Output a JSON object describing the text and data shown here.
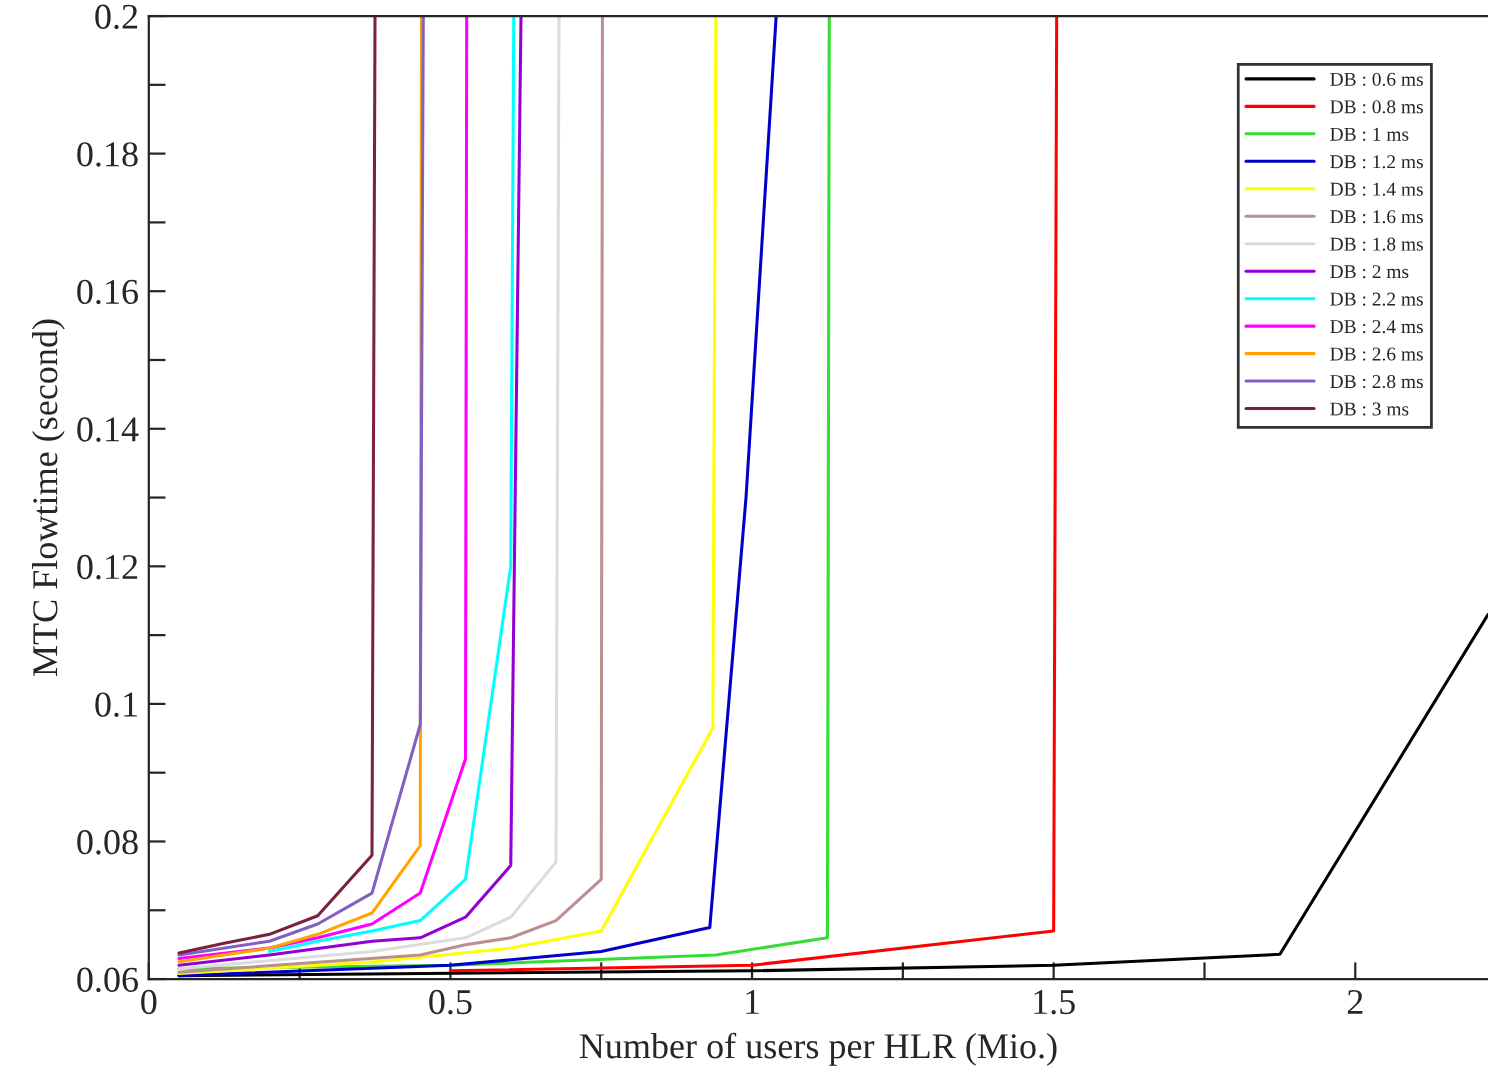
{
  "chart_data": {
    "type": "line",
    "xlabel": "Number of users per HLR (Mio.)",
    "ylabel": "MTC Flowtime (second)",
    "xlim": [
      0,
      2.22
    ],
    "ylim": [
      0.06,
      0.2
    ],
    "xticks": [
      0,
      {
        "value": 0.25,
        "label": null
      },
      0.5,
      {
        "value": 0.75,
        "label": null
      },
      1,
      {
        "value": 1.25,
        "label": null
      },
      1.5,
      {
        "value": 1.75,
        "label": null
      },
      2
    ],
    "yticks": [
      0.06,
      {
        "value": 0.07,
        "label": null
      },
      0.08,
      {
        "value": 0.09,
        "label": null
      },
      0.1,
      {
        "value": 0.11,
        "label": null
      },
      0.12,
      {
        "value": 0.13,
        "label": null
      },
      0.14,
      {
        "value": 0.15,
        "label": null
      },
      0.16,
      {
        "value": 0.17,
        "label": null
      },
      0.18,
      {
        "value": 0.19,
        "label": null
      },
      0.2
    ],
    "grid": false,
    "legend": "top right",
    "marker": "none",
    "line_style": "solid",
    "series": [
      {
        "name": "DB : 0.6 ms",
        "color": "#000000",
        "x": [
          0.05,
          1.0,
          1.5,
          1.875,
          2.22
        ],
        "values": [
          0.0605,
          0.0612,
          0.062,
          0.0636,
          0.113
        ]
      },
      {
        "name": "DB : 0.8 ms",
        "color": "#ff0000",
        "x": [
          0.5,
          1.0,
          1.5,
          1.505
        ],
        "values": [
          0.0612,
          0.062,
          0.067,
          0.2
        ]
      },
      {
        "name": "DB : 1 ms",
        "color": "#33dd33",
        "x": [
          0.05,
          0.5,
          0.94,
          1.125,
          1.128
        ],
        "values": [
          0.0615,
          0.062,
          0.0635,
          0.066,
          0.2
        ]
      },
      {
        "name": "DB : 1.2 ms",
        "color": "#0000cc",
        "x": [
          0.05,
          0.5,
          0.75,
          0.93,
          0.99,
          1.04
        ],
        "values": [
          0.0605,
          0.062,
          0.064,
          0.0675,
          0.13,
          0.2
        ]
      },
      {
        "name": "DB : 1.4 ms",
        "color": "#ffff00",
        "x": [
          0.05,
          0.375,
          0.6,
          0.75,
          0.935,
          0.94
        ],
        "values": [
          0.0608,
          0.0625,
          0.0645,
          0.067,
          0.0965,
          0.2
        ]
      },
      {
        "name": "DB : 1.6 ms",
        "color": "#bc8f8f",
        "x": [
          0.05,
          0.45,
          0.525,
          0.6,
          0.675,
          0.75,
          0.752
        ],
        "values": [
          0.061,
          0.0635,
          0.065,
          0.066,
          0.0685,
          0.0745,
          0.2
        ]
      },
      {
        "name": "DB : 1.8 ms",
        "color": "#dcdcdc",
        "x": [
          0.05,
          0.37,
          0.525,
          0.6,
          0.675,
          0.68
        ],
        "values": [
          0.0615,
          0.064,
          0.066,
          0.069,
          0.077,
          0.2
        ]
      },
      {
        "name": "DB : 2 ms",
        "color": "#9400d3",
        "x": [
          0.05,
          0.2,
          0.37,
          0.45,
          0.525,
          0.6,
          0.617
        ],
        "values": [
          0.062,
          0.0635,
          0.0655,
          0.066,
          0.069,
          0.0765,
          0.2
        ]
      },
      {
        "name": "DB : 2.2 ms",
        "color": "#00ffff",
        "x": [
          0.2,
          0.28,
          0.37,
          0.45,
          0.525,
          0.6,
          0.605
        ],
        "values": [
          0.064,
          0.0655,
          0.067,
          0.0685,
          0.0745,
          0.12,
          0.2
        ]
      },
      {
        "name": "DB : 2.4 ms",
        "color": "#ff00ff",
        "x": [
          0.05,
          0.2,
          0.28,
          0.37,
          0.45,
          0.525,
          0.527
        ],
        "values": [
          0.063,
          0.0645,
          0.066,
          0.068,
          0.0725,
          0.092,
          0.2
        ]
      },
      {
        "name": "DB : 2.6 ms",
        "color": "#ffa500",
        "x": [
          0.05,
          0.2,
          0.28,
          0.37,
          0.45,
          0.452
        ],
        "values": [
          0.0625,
          0.0645,
          0.0665,
          0.0696,
          0.0794,
          0.2
        ]
      },
      {
        "name": "DB : 2.8 ms",
        "color": "#8060c0",
        "x": [
          0.05,
          0.2,
          0.28,
          0.37,
          0.45,
          0.455
        ],
        "values": [
          0.0635,
          0.0655,
          0.068,
          0.0725,
          0.097,
          0.2
        ]
      },
      {
        "name": "DB : 3 ms",
        "color": "#7a2040",
        "x": [
          0.05,
          0.125,
          0.2,
          0.28,
          0.37,
          0.375
        ],
        "values": [
          0.0638,
          0.0652,
          0.0665,
          0.0692,
          0.078,
          0.2
        ]
      }
    ]
  }
}
